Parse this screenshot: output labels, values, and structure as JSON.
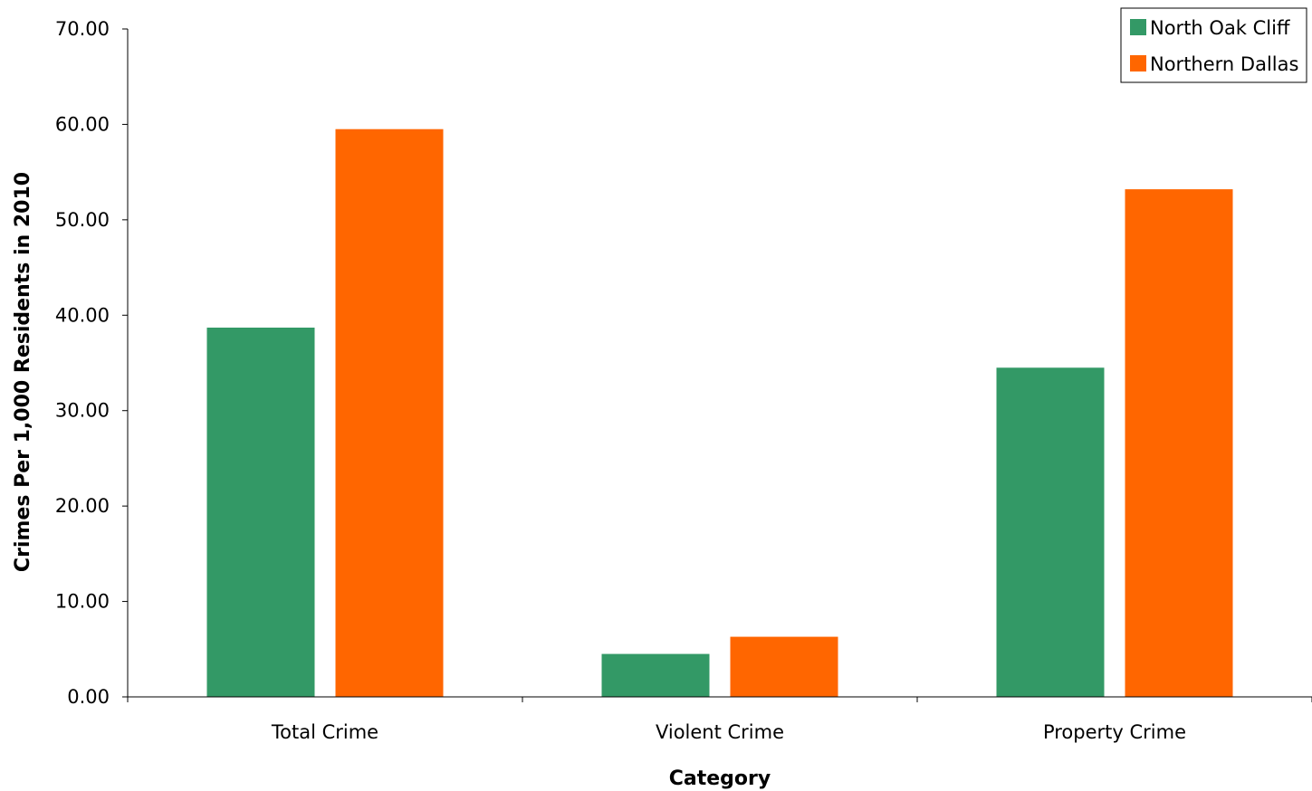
{
  "chart_data": {
    "type": "bar",
    "categories": [
      "Total Crime",
      "Violent Crime",
      "Property Crime"
    ],
    "series": [
      {
        "name": "North Oak Cliff",
        "values": [
          38.7,
          4.5,
          34.5
        ],
        "color": "#339966"
      },
      {
        "name": "Northern Dallas",
        "values": [
          59.5,
          6.3,
          53.2
        ],
        "color": "#FF6600"
      }
    ],
    "title": "",
    "xlabel": "Category",
    "ylabel": "Crimes Per 1,000 Residents in 2010",
    "ylim": [
      0,
      70
    ],
    "yticks": [
      0,
      10,
      20,
      30,
      40,
      50,
      60,
      70
    ],
    "ytick_labels": [
      "0.00",
      "10.00",
      "20.00",
      "30.00",
      "40.00",
      "50.00",
      "60.00",
      "70.00"
    ],
    "grid": false,
    "legend_position": "top-right"
  }
}
